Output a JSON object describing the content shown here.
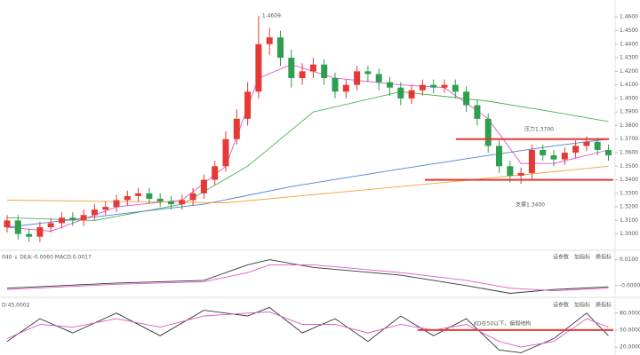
{
  "chart_data": [
    {
      "type": "candlestick",
      "open": [
        1.305,
        1.31,
        1.3,
        1.298,
        1.305,
        1.308,
        1.312,
        1.31,
        1.314,
        1.318,
        1.32,
        1.325,
        1.328,
        1.33,
        1.326,
        1.324,
        1.322,
        1.325,
        1.33,
        1.34,
        1.35,
        1.37,
        1.385,
        1.405,
        1.44,
        1.445,
        1.43,
        1.415,
        1.42,
        1.425,
        1.415,
        1.405,
        1.41,
        1.42,
        1.418,
        1.412,
        1.408,
        1.4,
        1.406,
        1.41,
        1.408,
        1.41,
        1.405,
        1.395,
        1.385,
        1.365,
        1.35,
        1.343,
        1.345,
        1.362,
        1.358,
        1.355,
        1.36,
        1.365,
        1.368,
        1.362
      ],
      "high": [
        1.314,
        1.314,
        1.304,
        1.309,
        1.312,
        1.316,
        1.316,
        1.318,
        1.322,
        1.324,
        1.329,
        1.332,
        1.334,
        1.334,
        1.33,
        1.328,
        1.329,
        1.334,
        1.344,
        1.354,
        1.376,
        1.392,
        1.412,
        1.4609,
        1.452,
        1.45,
        1.436,
        1.426,
        1.43,
        1.429,
        1.419,
        1.414,
        1.424,
        1.424,
        1.422,
        1.416,
        1.412,
        1.41,
        1.414,
        1.414,
        1.414,
        1.414,
        1.409,
        1.399,
        1.389,
        1.369,
        1.354,
        1.349,
        1.366,
        1.366,
        1.362,
        1.364,
        1.369,
        1.372,
        1.371,
        1.366
      ],
      "low": [
        1.301,
        1.296,
        1.294,
        1.294,
        1.301,
        1.304,
        1.306,
        1.306,
        1.31,
        1.314,
        1.316,
        1.321,
        1.324,
        1.322,
        1.32,
        1.318,
        1.318,
        1.321,
        1.326,
        1.336,
        1.346,
        1.366,
        1.38,
        1.4,
        1.432,
        1.424,
        1.408,
        1.41,
        1.415,
        1.41,
        1.4,
        1.4,
        1.406,
        1.412,
        1.406,
        1.402,
        1.395,
        1.396,
        1.402,
        1.404,
        1.404,
        1.4,
        1.39,
        1.38,
        1.36,
        1.345,
        1.338,
        1.337,
        1.34,
        1.354,
        1.35,
        1.351,
        1.356,
        1.361,
        1.358,
        1.354
      ],
      "close": [
        1.31,
        1.3,
        1.298,
        1.305,
        1.308,
        1.312,
        1.31,
        1.314,
        1.318,
        1.32,
        1.325,
        1.328,
        1.33,
        1.326,
        1.324,
        1.322,
        1.325,
        1.33,
        1.34,
        1.35,
        1.37,
        1.385,
        1.405,
        1.44,
        1.445,
        1.43,
        1.415,
        1.42,
        1.425,
        1.415,
        1.405,
        1.41,
        1.42,
        1.418,
        1.412,
        1.408,
        1.4,
        1.406,
        1.41,
        1.408,
        1.41,
        1.405,
        1.395,
        1.385,
        1.365,
        1.35,
        1.343,
        1.345,
        1.362,
        1.358,
        1.355,
        1.36,
        1.365,
        1.368,
        1.362,
        1.358
      ],
      "up_color": "#e53935",
      "down_color": "#2e9e4f",
      "series": [
        {
          "color": "#e056c8",
          "x": [
            0,
            4,
            10,
            16,
            20,
            23,
            26,
            30,
            36,
            40,
            44,
            47,
            50,
            55
          ],
          "values": [
            1.305,
            1.302,
            1.32,
            1.325,
            1.35,
            1.415,
            1.425,
            1.415,
            1.41,
            1.408,
            1.385,
            1.352,
            1.352,
            1.362
          ]
        },
        {
          "color": "#4caf50",
          "x": [
            0,
            8,
            16,
            22,
            28,
            36,
            44,
            50,
            55
          ],
          "values": [
            1.312,
            1.31,
            1.322,
            1.35,
            1.39,
            1.405,
            1.398,
            1.39,
            1.383
          ]
        },
        {
          "color": "#4a7fd6",
          "x": [
            0,
            18,
            26,
            36,
            44,
            50,
            55
          ],
          "values": [
            1.305,
            1.322,
            1.335,
            1.348,
            1.358,
            1.365,
            1.37
          ]
        },
        {
          "color": "#f2a33a",
          "x": [
            0,
            20,
            40,
            55
          ],
          "values": [
            1.325,
            1.323,
            1.338,
            1.35
          ]
        }
      ],
      "levels": [
        {
          "label": "压力1.3700",
          "value": 1.37,
          "color": "#e53935"
        },
        {
          "label": "支撑1.3400",
          "value": 1.34,
          "color": "#e53935"
        }
      ],
      "ylim": [
        1.288,
        1.4726
      ],
      "yticks": [
        {
          "value": 1.3,
          "label": "1.3000"
        },
        {
          "value": 1.31,
          "label": "1.3100"
        },
        {
          "value": 1.32,
          "label": "1.3200"
        },
        {
          "value": 1.33,
          "label": "1.3300"
        },
        {
          "value": 1.34,
          "label": "1.3400"
        },
        {
          "value": 1.35,
          "label": "1.3500"
        },
        {
          "value": 1.36,
          "label": "1.3600"
        },
        {
          "value": 1.37,
          "label": "1.3700"
        },
        {
          "value": 1.38,
          "label": "1.3800"
        },
        {
          "value": 1.39,
          "label": "1.3900"
        },
        {
          "value": 1.4,
          "label": "1.4000"
        },
        {
          "value": 1.41,
          "label": "1.4100"
        },
        {
          "value": 1.42,
          "label": "1.4200"
        },
        {
          "value": 1.43,
          "label": "1.4300"
        },
        {
          "value": 1.44,
          "label": "1.4400"
        },
        {
          "value": 1.45,
          "label": "1.4500"
        },
        {
          "value": 1.46,
          "label": "1.4600"
        }
      ]
    },
    {
      "type": "line",
      "header": "040 ↓ DEA:-0.0060 MACD:0.0017",
      "buttons": [
        "设参数",
        "加指标",
        "换指标"
      ],
      "series": [
        {
          "color": "#333333",
          "x": [
            0,
            10,
            18,
            22,
            24,
            28,
            36,
            42,
            46,
            50,
            55
          ],
          "values": [
            -0.001,
            0.001,
            0.002,
            0.008,
            0.01,
            0.007,
            0.004,
            0.0,
            -0.003,
            -0.0015,
            -0.0005
          ]
        },
        {
          "color": "#e056c8",
          "x": [
            0,
            10,
            18,
            22,
            24,
            28,
            36,
            42,
            46,
            50,
            55
          ],
          "values": [
            -0.0015,
            0.0005,
            0.0015,
            0.005,
            0.008,
            0.008,
            0.005,
            0.002,
            -0.001,
            -0.002,
            -0.001
          ]
        }
      ],
      "levels": [],
      "ylim": [
        -0.0035,
        0.0126
      ],
      "yticks": [
        {
          "value": 0.01,
          "label": "0.0100"
        },
        {
          "value": 0,
          "label": "-0.0000"
        }
      ]
    },
    {
      "type": "line",
      "header": "D:45.0002",
      "buttons": [
        "设参数",
        "加指标",
        "换指标"
      ],
      "series": [
        {
          "color": "#333333",
          "x": [
            0,
            3,
            6,
            10,
            14,
            18,
            22,
            24,
            27,
            30,
            33,
            36,
            39,
            42,
            45,
            47,
            50,
            53,
            55
          ],
          "values": [
            30,
            70,
            45,
            80,
            40,
            85,
            75,
            90,
            45,
            70,
            30,
            75,
            40,
            70,
            15,
            10,
            35,
            80,
            40
          ]
        },
        {
          "color": "#e056c8",
          "x": [
            0,
            3,
            6,
            10,
            14,
            18,
            22,
            24,
            27,
            30,
            33,
            36,
            39,
            42,
            45,
            47,
            50,
            53,
            55
          ],
          "values": [
            35,
            60,
            55,
            70,
            55,
            75,
            80,
            82,
            60,
            60,
            45,
            60,
            50,
            60,
            30,
            20,
            30,
            70,
            55
          ]
        }
      ],
      "levels": [
        {
          "label": "KD在50以下，偏弱结构",
          "value": 50,
          "color": "#e53935"
        }
      ],
      "ylim": [
        6,
        100
      ],
      "yticks": [
        {
          "value": 80,
          "label": "80.0000"
        },
        {
          "value": 50,
          "label": "50.0000"
        },
        {
          "value": 20,
          "label": "20.0000"
        }
      ]
    }
  ]
}
